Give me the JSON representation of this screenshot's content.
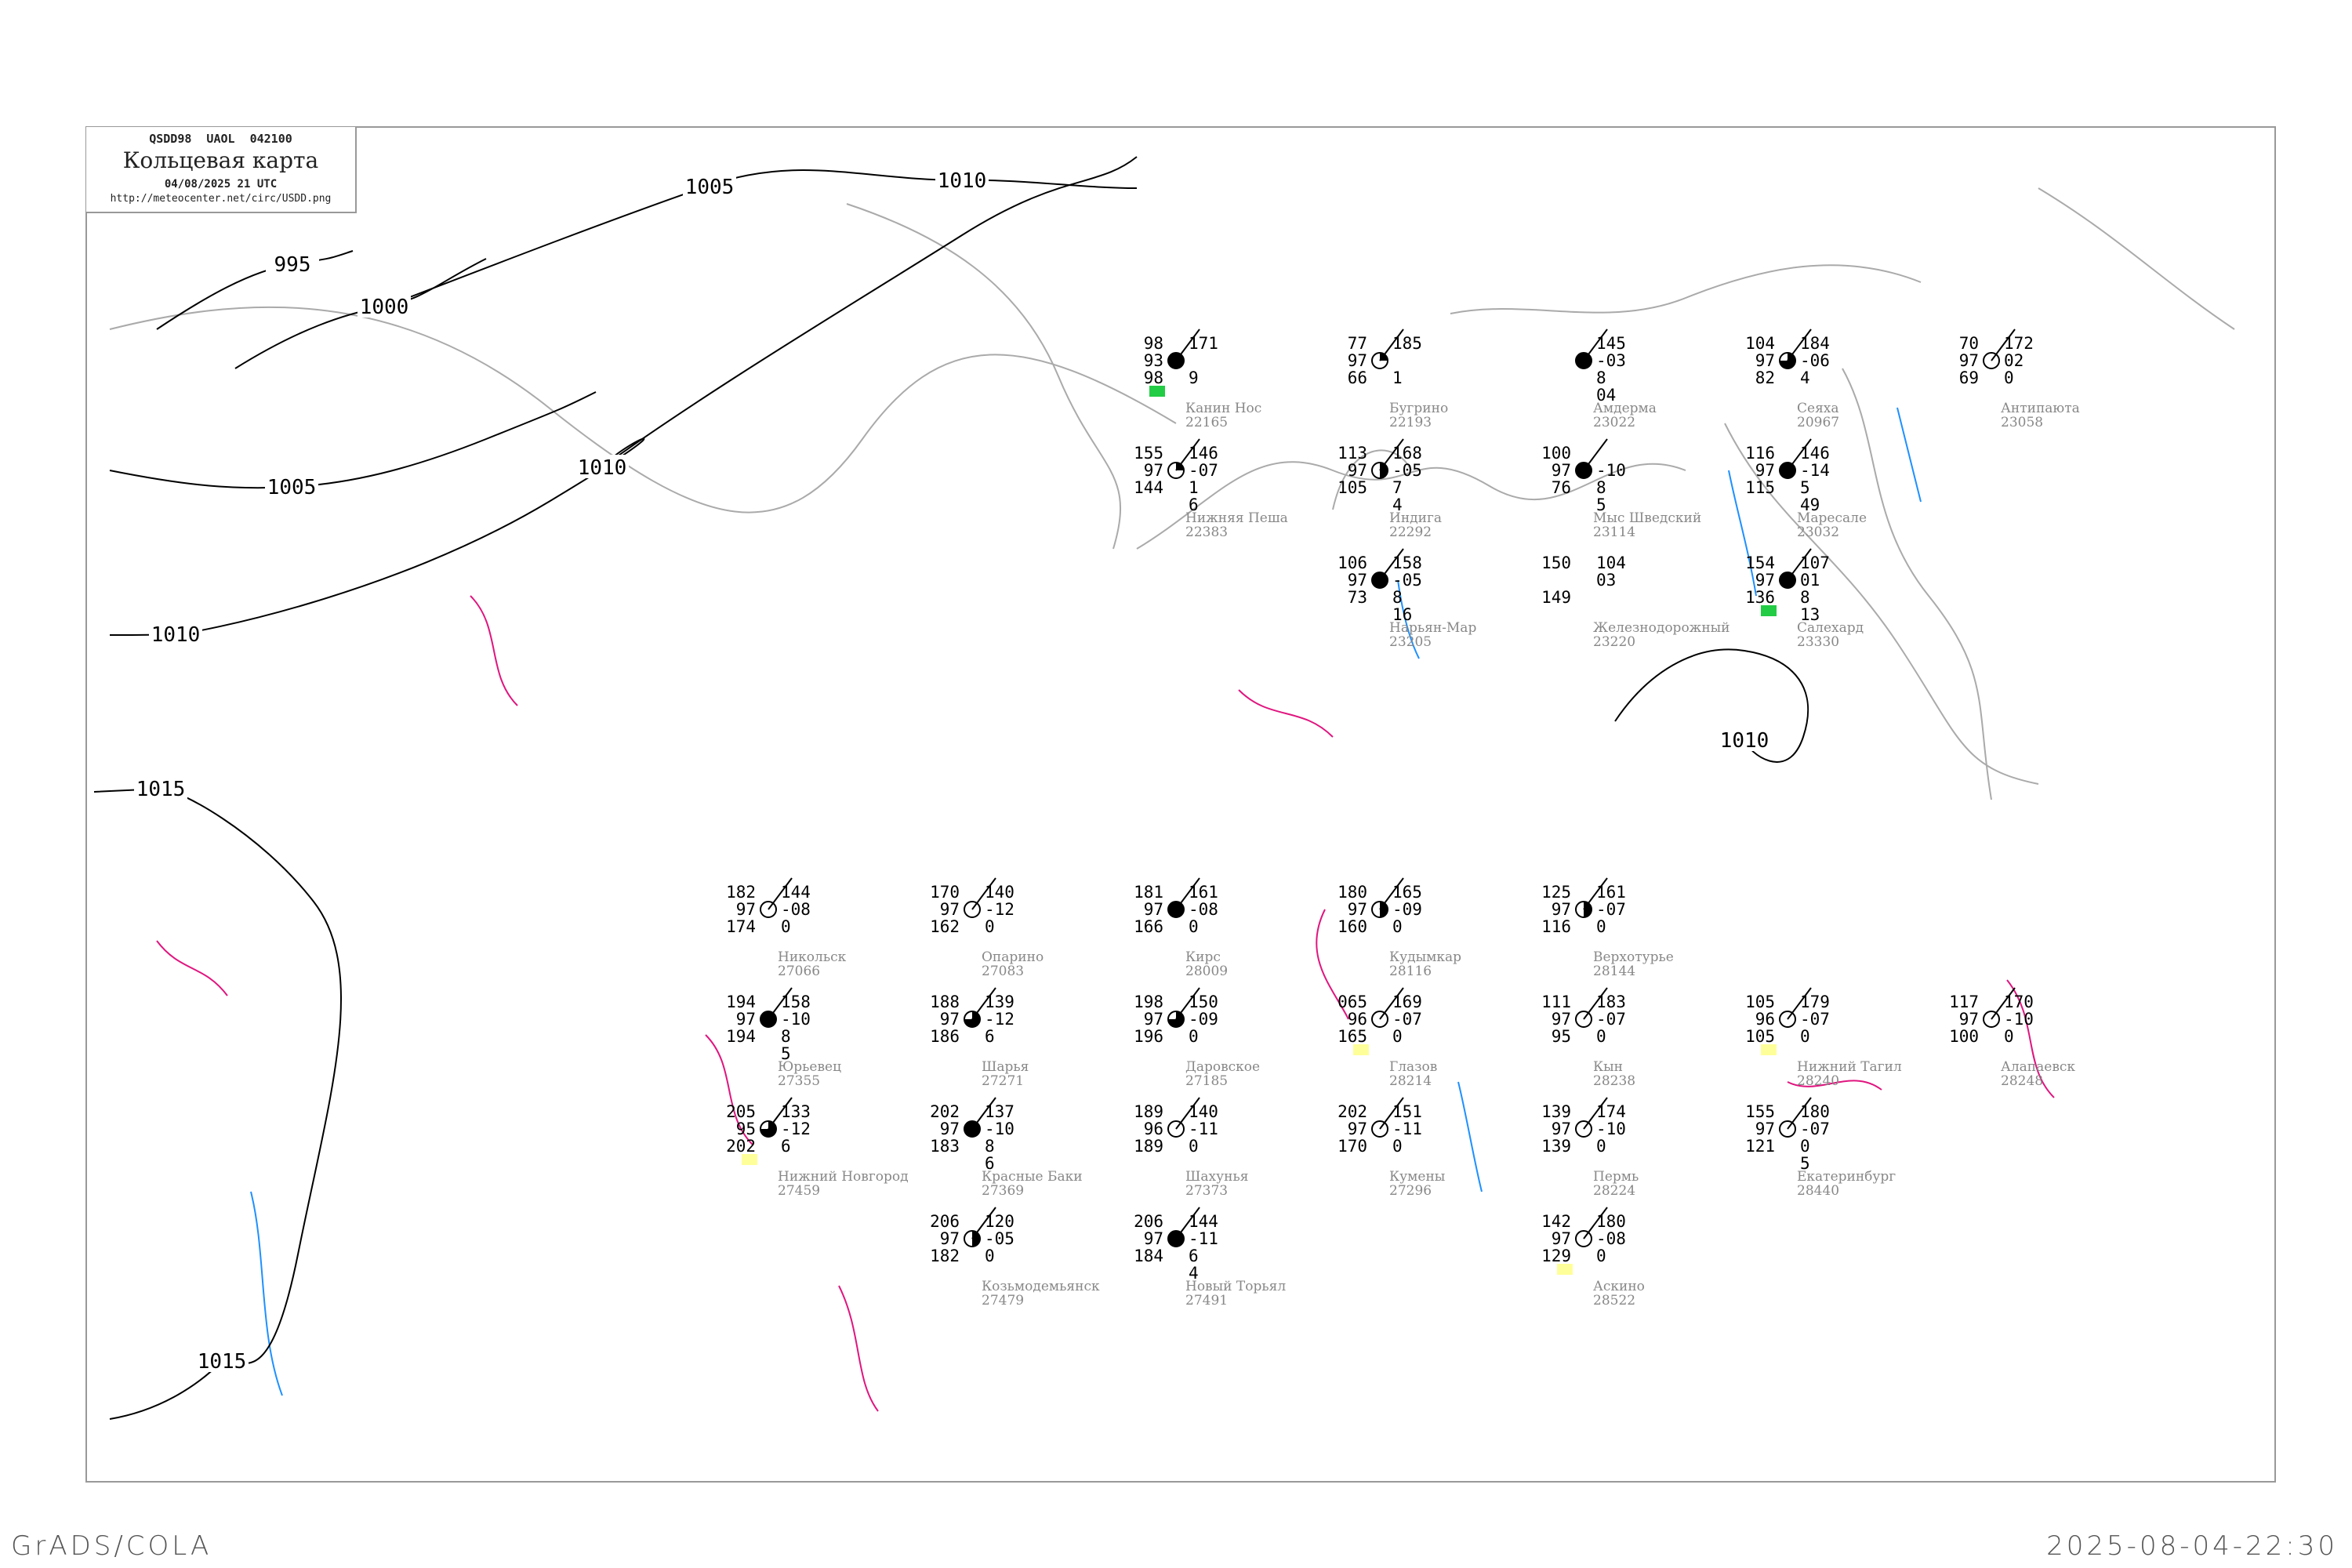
{
  "header": {
    "code_line": "QSDD98  UAOL  042100",
    "title": "Кольцевая карта",
    "datetime": "04/08/2025 21 UTC",
    "url": "http://meteocenter.net/circ/USDD.png"
  },
  "footer": {
    "left": "GrADS/COLA",
    "right": "2025-08-04-22:30"
  },
  "colors": {
    "isobar": "#000000",
    "isallobar": "#e0157f",
    "coast": "#aaaaaa",
    "river": "#1e90ff",
    "precip_green": "#22cc44",
    "fog_yellow": "#ffff99",
    "station_name": "#888888"
  },
  "isobar_labels": [
    "1005",
    "1010",
    "995",
    "1000",
    "1005",
    "1010",
    "1010",
    "1015",
    "1015",
    "1010"
  ],
  "stations": [
    {
      "name": "Канин Нос",
      "id": "22165",
      "left": [
        "98",
        "93",
        "98"
      ],
      "right": [
        "171",
        "",
        "9"
      ],
      "cloud": 1,
      "mark": "green"
    },
    {
      "name": "Бугрино",
      "id": "22193",
      "left": [
        "77",
        "97",
        "66"
      ],
      "right": [
        "185",
        "",
        "1"
      ],
      "cloud": 0.25
    },
    {
      "name": "Индига",
      "id": "22292",
      "left": [
        "113",
        "97",
        "105"
      ],
      "right": [
        "168",
        "-05",
        "7",
        "4"
      ],
      "cloud": 0.5
    },
    {
      "name": "Нижняя Пеша",
      "id": "22383",
      "left": [
        "155",
        "97",
        "144"
      ],
      "right": [
        "146",
        "-07",
        "1",
        "6"
      ],
      "cloud": 0.25
    },
    {
      "name": "Нарьян-Мар",
      "id": "23205",
      "left": [
        "106",
        "97",
        "73"
      ],
      "right": [
        "158",
        "-05",
        "8",
        "16"
      ],
      "cloud": 1
    },
    {
      "name": "Мыс Шведский",
      "id": "23114",
      "left": [
        "100",
        "97",
        "76"
      ],
      "right": [
        "",
        "-10",
        "8",
        "5"
      ],
      "cloud": 1
    },
    {
      "name": "Амдерма",
      "id": "23022",
      "left": [
        "",
        "",
        ""
      ],
      "right": [
        "145",
        "-03",
        "8",
        "04"
      ],
      "cloud": 1
    },
    {
      "name": "Маресале",
      "id": "23032",
      "left": [
        "116",
        "97",
        "115"
      ],
      "right": [
        "146",
        "-14",
        "5",
        "49"
      ],
      "cloud": 1
    },
    {
      "name": "Сеяха",
      "id": "20967",
      "left": [
        "104",
        "97",
        "82"
      ],
      "right": [
        "184",
        "-06",
        "4"
      ],
      "cloud": 0.75
    },
    {
      "name": "Антипаюта",
      "id": "23058",
      "left": [
        "70",
        "97",
        "69"
      ],
      "right": [
        "172",
        "02",
        "0"
      ],
      "cloud": 0
    },
    {
      "name": "Салехард",
      "id": "23330",
      "left": [
        "154",
        "97",
        "136"
      ],
      "right": [
        "107",
        "01",
        "8",
        "13"
      ],
      "cloud": 1,
      "mark": "green"
    },
    {
      "name": "Кудымкар",
      "id": "28116",
      "left": [
        "180",
        "97",
        "160"
      ],
      "right": [
        "165",
        "-09",
        "0"
      ],
      "cloud": 0.5
    },
    {
      "name": "Пермь",
      "id": "28224",
      "left": [
        "139",
        "97",
        "139"
      ],
      "right": [
        "174",
        "-10",
        "0"
      ],
      "cloud": 0
    },
    {
      "name": "Кын",
      "id": "28238",
      "left": [
        "111",
        "97",
        "95"
      ],
      "right": [
        "183",
        "-07",
        "0"
      ],
      "cloud": 0
    },
    {
      "name": "Нижний Тагил",
      "id": "28240",
      "left": [
        "105",
        "96",
        "105"
      ],
      "right": [
        "179",
        "-07",
        "0"
      ],
      "cloud": 0,
      "mark": "yellow"
    },
    {
      "name": "Алапаевск",
      "id": "28248",
      "left": [
        "117",
        "97",
        "100"
      ],
      "right": [
        "170",
        "-10",
        "0"
      ],
      "cloud": 0
    },
    {
      "name": "Верхотурье",
      "id": "28144",
      "left": [
        "125",
        "97",
        "116"
      ],
      "right": [
        "161",
        "-07",
        "0"
      ],
      "cloud": 0.5
    },
    {
      "name": "Екатеринбург",
      "id": "28440",
      "left": [
        "155",
        "97",
        "121"
      ],
      "right": [
        "180",
        "-07",
        "0",
        "5"
      ],
      "cloud": 0
    },
    {
      "name": "Аскино",
      "id": "28522",
      "left": [
        "142",
        "97",
        "129"
      ],
      "right": [
        "180",
        "-08",
        "0"
      ],
      "cloud": 0,
      "mark": "yellow"
    },
    {
      "name": "Никольск",
      "id": "27066",
      "left": [
        "182",
        "97",
        "174"
      ],
      "right": [
        "144",
        "-08",
        "0"
      ],
      "cloud": 0
    },
    {
      "name": "Опарино",
      "id": "27083",
      "left": [
        "170",
        "97",
        "162"
      ],
      "right": [
        "140",
        "-12",
        "0"
      ],
      "cloud": 0
    },
    {
      "name": "Шарья",
      "id": "27271",
      "left": [
        "188",
        "97",
        "186"
      ],
      "right": [
        "139",
        "-12",
        "6"
      ],
      "cloud": 0.75
    },
    {
      "name": "Шахунья",
      "id": "27373",
      "left": [
        "189",
        "96",
        "189"
      ],
      "right": [
        "140",
        "-11",
        "0"
      ],
      "cloud": 0
    },
    {
      "name": "Кумены",
      "id": "27296",
      "left": [
        "202",
        "97",
        "170"
      ],
      "right": [
        "151",
        "-11",
        "0"
      ],
      "cloud": 0
    },
    {
      "name": "Кирс",
      "id": "28009",
      "left": [
        "181",
        "97",
        "166"
      ],
      "right": [
        "161",
        "-08",
        "0"
      ],
      "cloud": 1
    },
    {
      "name": "Даровское",
      "id": "27185",
      "left": [
        "198",
        "97",
        "196"
      ],
      "right": [
        "150",
        "-09",
        "0"
      ],
      "cloud": 0.75
    },
    {
      "name": "Глазов",
      "id": "28214",
      "left": [
        "065",
        "96",
        "165"
      ],
      "right": [
        "169",
        "-07",
        "0"
      ],
      "cloud": 0,
      "mark": "yellow"
    },
    {
      "name": "Новый Торьял",
      "id": "27491",
      "left": [
        "206",
        "97",
        "184"
      ],
      "right": [
        "144",
        "-11",
        "6",
        "4"
      ],
      "cloud": 1
    },
    {
      "name": "Нижний Новгород",
      "id": "27459",
      "left": [
        "205",
        "95",
        "202"
      ],
      "right": [
        "133",
        "-12",
        "6"
      ],
      "cloud": 0.75,
      "mark": "yellow"
    },
    {
      "name": "Юрьевец",
      "id": "27355",
      "left": [
        "194",
        "97",
        "194"
      ],
      "right": [
        "158",
        "-10",
        "8",
        "5"
      ],
      "cloud": 1
    },
    {
      "name": "Красные Баки",
      "id": "27369",
      "left": [
        "202",
        "97",
        "183"
      ],
      "right": [
        "137",
        "-10",
        "8",
        "6"
      ],
      "cloud": 1
    },
    {
      "name": "Козьмодемьянск",
      "id": "27479",
      "left": [
        "206",
        "97",
        "182"
      ],
      "right": [
        "120",
        "-05",
        "0"
      ],
      "cloud": 0.5
    },
    {
      "name": "Железнодорожный",
      "id": "23220",
      "left": [
        "150",
        "",
        "149"
      ],
      "right": [
        "104",
        "03",
        ""
      ],
      "cloud": -1
    }
  ]
}
